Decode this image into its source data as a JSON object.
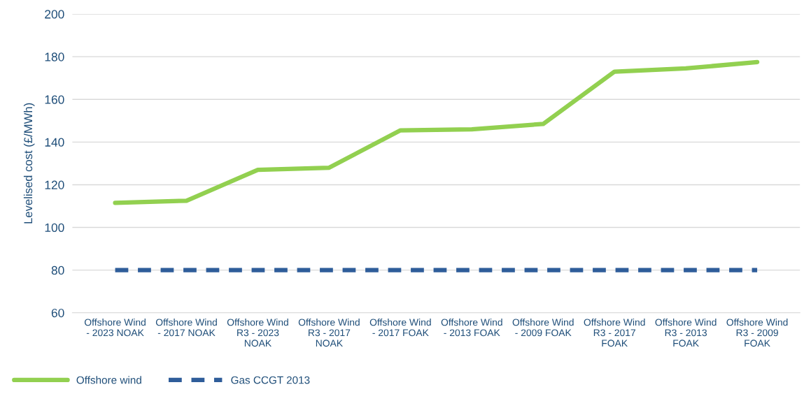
{
  "chart_data": {
    "type": "line",
    "ylabel": "Levelised cost (£/MWh)",
    "categories": [
      "Offshore Wind - 2023 NOAK",
      "Offshore Wind - 2017 NOAK",
      "Offshore Wind R3 - 2023 NOAK",
      "Offshore Wind R3 - 2017 NOAK",
      "Offshore Wind - 2017 FOAK",
      "Offshore Wind - 2013 FOAK",
      "Offshore Wind - 2009 FOAK",
      "Offshore Wind R3 - 2017 FOAK",
      "Offshore Wind R3 - 2013 FOAK",
      "Offshore Wind R3 - 2009 FOAK"
    ],
    "series": [
      {
        "name": "Offshore wind",
        "color": "#92d050",
        "line_style": "solid",
        "values": [
          111.5,
          112.5,
          127,
          128,
          145.5,
          146,
          148.5,
          173,
          174.5,
          177.5
        ]
      },
      {
        "name": "Gas CCGT 2013",
        "color": "#2f5d9a",
        "line_style": "dashed",
        "values": [
          80,
          80,
          80,
          80,
          80,
          80,
          80,
          80,
          80,
          80
        ]
      }
    ],
    "ylim": [
      60,
      200
    ],
    "yticks": [
      60,
      80,
      100,
      120,
      140,
      160,
      180,
      200
    ],
    "grid": "y",
    "legend": "bottom left",
    "marker": "none"
  }
}
